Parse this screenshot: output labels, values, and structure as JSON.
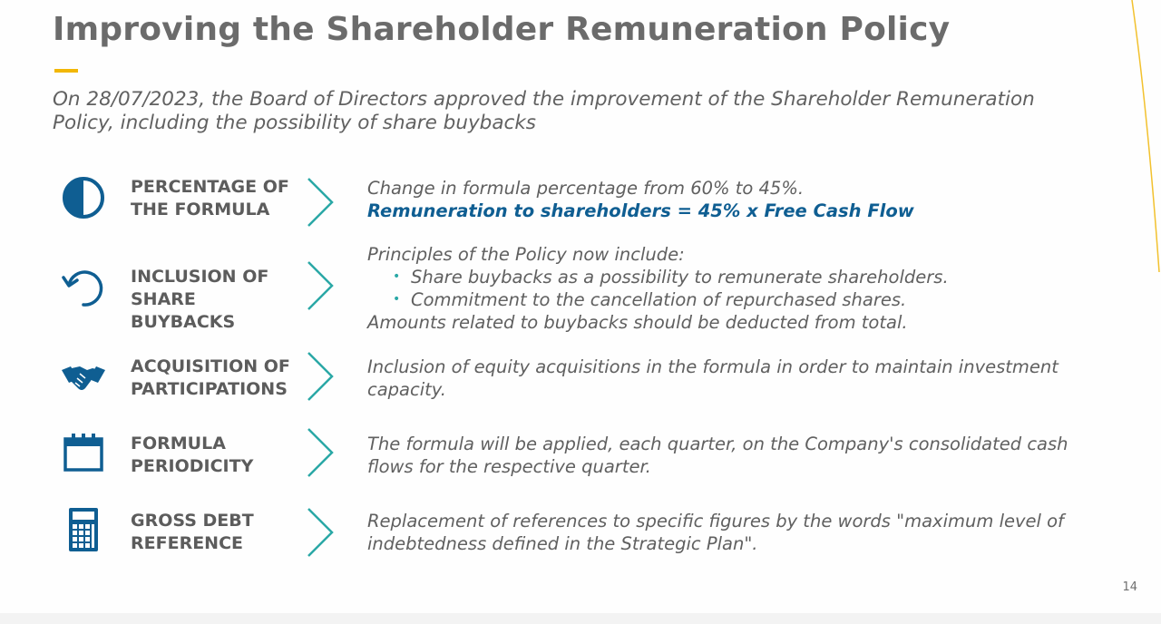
{
  "slide": {
    "title": "Improving the Shareholder Remuneration Policy",
    "subtitle": "On 28/07/2023, the Board of Directors approved the improvement of the Shareholder Remuneration Policy, including the possibility of share buybacks",
    "page_number": "14",
    "colors": {
      "title": "#6b6b6b",
      "accent": "#f2b705",
      "icon": "#0f5e92",
      "chevron": "#2aa8a6",
      "highlight": "#0f5e92"
    }
  },
  "items": [
    {
      "icon": "pie-half-icon",
      "label_line1": "PERCENTAGE OF",
      "label_line2": "THE FORMULA",
      "desc_line1": "Change in formula percentage from 60% to 45%.",
      "desc_highlight": "Remuneration to shareholders = 45% x Free Cash Flow"
    },
    {
      "icon": "undo-arrow-icon",
      "label_line1": "INCLUSION OF",
      "label_line2": "SHARE BUYBACKS",
      "desc_intro": "Principles of the Policy now include:",
      "bullets": [
        "Share buybacks as a possibility to remunerate shareholders.",
        "Commitment to the cancellation of repurchased shares."
      ],
      "desc_outro": "Amounts related to buybacks should be deducted from total."
    },
    {
      "icon": "handshake-icon",
      "label_line1": "ACQUISITION OF",
      "label_line2": "PARTICIPATIONS",
      "desc_line1": "Inclusion of equity acquisitions in the formula in order to maintain investment",
      "desc_line2": "capacity."
    },
    {
      "icon": "calendar-icon",
      "label_line1": "FORMULA",
      "label_line2": "PERIODICITY",
      "desc_line1": "The formula will be applied, each quarter, on the Company's consolidated cash",
      "desc_line2": "flows for the respective quarter."
    },
    {
      "icon": "calculator-icon",
      "label_line1": "GROSS DEBT",
      "label_line2": "REFERENCE",
      "desc_line1": "Replacement of references to specific figures by the words \"maximum level of",
      "desc_line2": "indebtedness defined in the Strategic Plan\"."
    }
  ]
}
